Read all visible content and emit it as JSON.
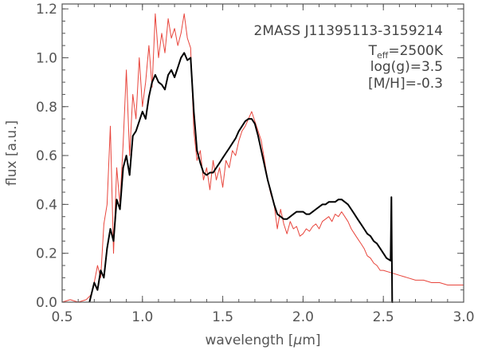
{
  "chart_data": {
    "type": "line",
    "xlabel": "wavelength [",
    "xlabel_symbol": "μ",
    "xlabel_unit": "m]",
    "ylabel": "flux [a.u.]",
    "xlim": [
      0.5,
      3.0
    ],
    "ylim": [
      0.0,
      1.22
    ],
    "x_ticks": [
      "0.5",
      "1.0",
      "1.5",
      "2.0",
      "2.5",
      "3.0"
    ],
    "y_ticks": [
      "0.0",
      "0.2",
      "0.4",
      "0.6",
      "0.8",
      "1.0",
      "1.2"
    ],
    "annotation": {
      "object_name": "2MASS J11395113-3159214",
      "teff_prefix": "T",
      "teff_sub": "eff",
      "teff_value": "=2500K",
      "logg": "log(g)=3.5",
      "metallicity": "[M/H]=-0.3"
    },
    "series": [
      {
        "color": "#000000",
        "x": [
          0.67,
          0.7,
          0.72,
          0.74,
          0.76,
          0.78,
          0.8,
          0.82,
          0.84,
          0.86,
          0.88,
          0.9,
          0.92,
          0.94,
          0.96,
          0.98,
          1.0,
          1.02,
          1.04,
          1.06,
          1.08,
          1.1,
          1.12,
          1.14,
          1.16,
          1.18,
          1.2,
          1.22,
          1.24,
          1.26,
          1.28,
          1.3,
          1.32,
          1.34,
          1.36,
          1.38,
          1.4,
          1.42,
          1.44,
          1.46,
          1.48,
          1.5,
          1.52,
          1.54,
          1.56,
          1.58,
          1.6,
          1.62,
          1.64,
          1.66,
          1.68,
          1.7,
          1.72,
          1.74,
          1.76,
          1.78,
          1.8,
          1.82,
          1.84,
          1.86,
          1.88,
          1.9,
          1.92,
          1.94,
          1.96,
          1.98,
          2.0,
          2.02,
          2.04,
          2.06,
          2.08,
          2.1,
          2.12,
          2.14,
          2.16,
          2.18,
          2.2,
          2.22,
          2.24,
          2.26,
          2.28,
          2.3,
          2.32,
          2.34,
          2.36,
          2.38,
          2.4,
          2.42,
          2.44,
          2.46,
          2.48,
          2.5,
          2.52,
          2.545,
          2.55,
          2.555,
          2.56
        ],
        "y": [
          0.0,
          0.08,
          0.05,
          0.13,
          0.1,
          0.22,
          0.3,
          0.25,
          0.42,
          0.38,
          0.55,
          0.6,
          0.52,
          0.68,
          0.7,
          0.74,
          0.78,
          0.75,
          0.84,
          0.9,
          0.93,
          0.9,
          0.89,
          0.87,
          0.93,
          0.95,
          0.92,
          0.96,
          1.0,
          1.02,
          0.99,
          1.0,
          0.78,
          0.62,
          0.57,
          0.53,
          0.52,
          0.53,
          0.53,
          0.55,
          0.57,
          0.59,
          0.61,
          0.63,
          0.65,
          0.67,
          0.7,
          0.72,
          0.74,
          0.75,
          0.75,
          0.73,
          0.68,
          0.62,
          0.56,
          0.5,
          0.45,
          0.4,
          0.36,
          0.35,
          0.34,
          0.34,
          0.35,
          0.36,
          0.37,
          0.37,
          0.37,
          0.36,
          0.36,
          0.37,
          0.38,
          0.39,
          0.4,
          0.4,
          0.41,
          0.41,
          0.41,
          0.42,
          0.42,
          0.41,
          0.4,
          0.38,
          0.36,
          0.34,
          0.32,
          0.3,
          0.28,
          0.27,
          0.25,
          0.24,
          0.22,
          0.2,
          0.18,
          0.17,
          0.43,
          0.0,
          0.0
        ]
      },
      {
        "color": "#e8453c",
        "x": [
          0.5,
          0.55,
          0.6,
          0.65,
          0.68,
          0.7,
          0.72,
          0.74,
          0.76,
          0.78,
          0.8,
          0.82,
          0.84,
          0.86,
          0.88,
          0.9,
          0.92,
          0.94,
          0.96,
          0.98,
          1.0,
          1.02,
          1.04,
          1.06,
          1.08,
          1.1,
          1.12,
          1.14,
          1.16,
          1.18,
          1.2,
          1.22,
          1.24,
          1.26,
          1.28,
          1.3,
          1.32,
          1.34,
          1.36,
          1.38,
          1.4,
          1.42,
          1.44,
          1.46,
          1.48,
          1.5,
          1.52,
          1.54,
          1.56,
          1.58,
          1.6,
          1.62,
          1.64,
          1.66,
          1.68,
          1.7,
          1.72,
          1.74,
          1.76,
          1.78,
          1.8,
          1.82,
          1.84,
          1.86,
          1.88,
          1.9,
          1.92,
          1.94,
          1.96,
          1.98,
          2.0,
          2.02,
          2.04,
          2.06,
          2.08,
          2.1,
          2.12,
          2.14,
          2.16,
          2.18,
          2.2,
          2.22,
          2.24,
          2.26,
          2.28,
          2.3,
          2.32,
          2.34,
          2.36,
          2.38,
          2.4,
          2.42,
          2.44,
          2.46,
          2.48,
          2.5,
          2.55,
          2.6,
          2.65,
          2.7,
          2.75,
          2.8,
          2.85,
          2.9,
          2.95,
          3.0
        ],
        "y": [
          0.0,
          0.01,
          0.0,
          0.01,
          0.03,
          0.08,
          0.15,
          0.1,
          0.32,
          0.4,
          0.72,
          0.2,
          0.55,
          0.4,
          0.65,
          0.95,
          0.6,
          0.85,
          0.75,
          1.0,
          0.8,
          0.9,
          1.05,
          0.88,
          1.18,
          1.0,
          1.1,
          1.02,
          1.16,
          1.08,
          1.12,
          1.05,
          1.1,
          1.18,
          1.08,
          1.04,
          0.7,
          0.58,
          0.62,
          0.5,
          0.55,
          0.46,
          0.58,
          0.5,
          0.55,
          0.47,
          0.58,
          0.55,
          0.62,
          0.6,
          0.66,
          0.7,
          0.72,
          0.75,
          0.78,
          0.74,
          0.7,
          0.66,
          0.58,
          0.5,
          0.44,
          0.4,
          0.3,
          0.38,
          0.32,
          0.28,
          0.33,
          0.3,
          0.31,
          0.27,
          0.28,
          0.3,
          0.29,
          0.31,
          0.32,
          0.3,
          0.33,
          0.34,
          0.35,
          0.33,
          0.36,
          0.35,
          0.37,
          0.35,
          0.33,
          0.3,
          0.28,
          0.26,
          0.24,
          0.22,
          0.19,
          0.18,
          0.16,
          0.15,
          0.13,
          0.13,
          0.12,
          0.11,
          0.1,
          0.09,
          0.09,
          0.08,
          0.08,
          0.07,
          0.07,
          0.07
        ]
      }
    ]
  }
}
